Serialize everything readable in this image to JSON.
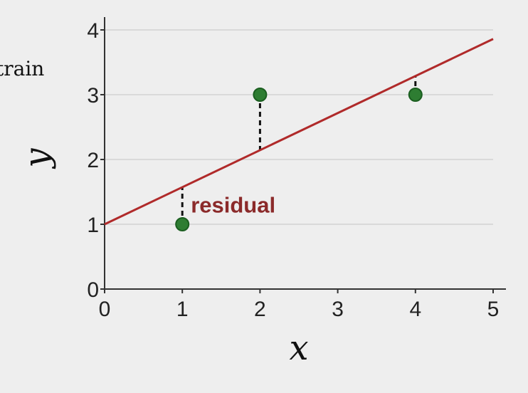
{
  "colors": {
    "background": "#eeeeee",
    "grid": "#d9d9d9",
    "axis": "#333333",
    "fit_line": "#b02a2a",
    "point_fill": "#2e7d32",
    "point_stroke": "#1b5e20",
    "residual": "#111111",
    "annotation": "#8b2a2a"
  },
  "clipped_label": "train",
  "chart_data": {
    "type": "scatter",
    "title": "",
    "xlabel": "x",
    "ylabel": "y",
    "xlim": [
      0,
      5
    ],
    "ylim": [
      0,
      4
    ],
    "x_ticks": [
      0,
      1,
      2,
      3,
      4,
      5
    ],
    "y_ticks": [
      0,
      1,
      2,
      3,
      4
    ],
    "grid": "horizontal",
    "series": [
      {
        "type": "scatter",
        "points": [
          [
            1,
            1
          ],
          [
            2,
            3
          ],
          [
            4,
            3
          ]
        ]
      },
      {
        "type": "line",
        "points": [
          [
            0,
            1
          ],
          [
            5,
            3.86
          ]
        ]
      }
    ],
    "residual_segments": [
      {
        "x": 1,
        "y_point": 1,
        "y_fit": 1.57
      },
      {
        "x": 2,
        "y_point": 3,
        "y_fit": 2.14
      },
      {
        "x": 4,
        "y_point": 3,
        "y_fit": 3.29
      }
    ],
    "annotations": [
      {
        "text": "residual",
        "x": 1,
        "y": 1.3
      }
    ]
  }
}
